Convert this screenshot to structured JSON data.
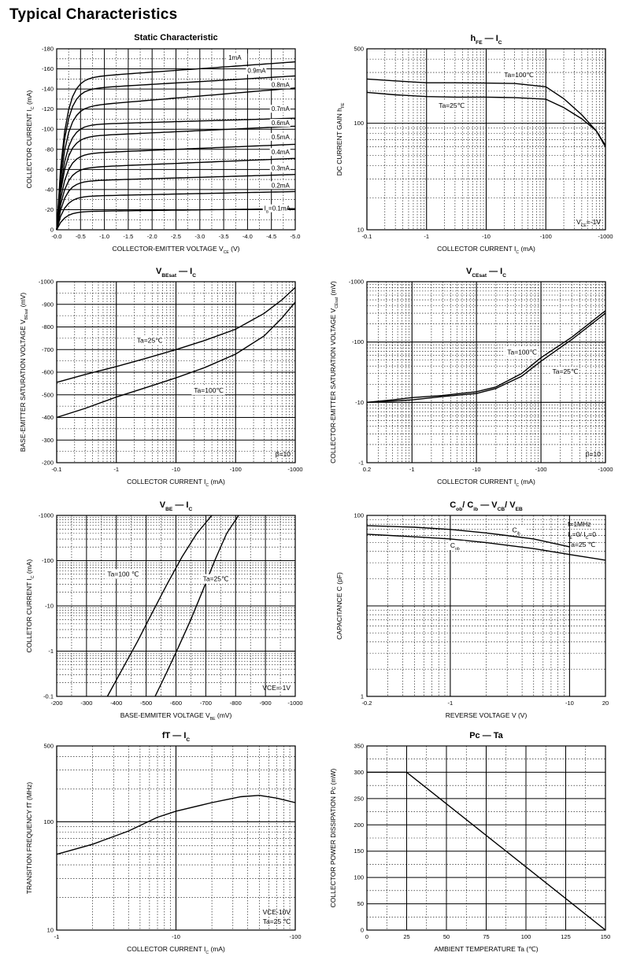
{
  "page_title": "Typical  Characteristics",
  "chart_data": [
    {
      "id": "static",
      "type": "line",
      "title": "Static Characteristic",
      "xlabel": "COLLECTOR-EMITTER VOLTAGE",
      "xlabel_sub": "V",
      "xlabel_sub_idx": "CE",
      "xlabel_unit": "(V)",
      "ylabel": "COLLECTOR CURRENT",
      "ylabel_sym": "I",
      "ylabel_idx": "C",
      "ylabel_unit": "(mA)",
      "xlim": [
        0,
        -5
      ],
      "ylim": [
        0,
        -180
      ],
      "xticks": [
        "-0.0",
        "-0.5",
        "-1.0",
        "-1.5",
        "-2.0",
        "-2.5",
        "-3.0",
        "-3.5",
        "-4.0",
        "-4.5",
        "-5.0"
      ],
      "yticks": [
        "0",
        "-20",
        "-40",
        "-60",
        "-80",
        "-100",
        "-120",
        "-140",
        "-160",
        "-180"
      ],
      "series": [
        {
          "name": "1mA",
          "sat": -150,
          "end": -167,
          "lx": -3.6,
          "ly": -169
        },
        {
          "name": "0.9mA",
          "sat": -139,
          "end": -153,
          "lx": -4.0,
          "ly": -156
        },
        {
          "name": "0.8mA",
          "sat": -121,
          "end": -141,
          "lx": -4.5,
          "ly": -142
        },
        {
          "name": "0.7mA",
          "sat": -104,
          "end": -111,
          "lx": -4.5,
          "ly": -118
        },
        {
          "name": "0.6mA",
          "sat": -92,
          "end": -103,
          "lx": -4.5,
          "ly": -104
        },
        {
          "name": "0.5mA",
          "sat": -75,
          "end": -85,
          "lx": -4.5,
          "ly": -90
        },
        {
          "name": "0.4mA",
          "sat": -61,
          "end": -71,
          "lx": -4.5,
          "ly": -75
        },
        {
          "name": "0.3mA",
          "sat": -48,
          "end": -55,
          "lx": -4.5,
          "ly": -59
        },
        {
          "name": "0.2mA",
          "sat": -33,
          "end": -38,
          "lx": -4.5,
          "ly": -42
        },
        {
          "name": "0.1mA",
          "sat": -18,
          "end": -21,
          "lx": -4.35,
          "ly": -19,
          "prefix": "I",
          "prefix_idx": "B"
        }
      ]
    },
    {
      "id": "hfe",
      "type": "line",
      "title": "h",
      "title_sub": "FE",
      "title_vs": "I",
      "title_vs_sub": "C",
      "xlabel": "COLLECTOR CURRENT",
      "xlabel_sub": "I",
      "xlabel_sub_idx": "C",
      "xlabel_unit": "(mA)",
      "ylabel": "DC CURRENT GAIN",
      "ylabel_sym": "h",
      "ylabel_idx": "FE",
      "x_scale": "log",
      "y_scale": "log",
      "xlim": [
        -0.1,
        -1000
      ],
      "ylim": [
        10,
        500
      ],
      "xticks": [
        "-0.1",
        "-1",
        "-10",
        "-100",
        "-1000"
      ],
      "yticks": [
        "10",
        "100",
        "500"
      ],
      "note": "V",
      "note_sub": "CE",
      "note_val": "=-1V",
      "series": [
        {
          "name": "Ta=100℃",
          "x": [
            -0.1,
            -0.3,
            -1,
            -3,
            -10,
            -30,
            -100,
            -200,
            -400,
            -700,
            -1000
          ],
          "y": [
            260,
            250,
            240,
            240,
            238,
            236,
            220,
            170,
            120,
            85,
            60
          ]
        },
        {
          "name": "Ta=25℃",
          "x": [
            -0.1,
            -0.3,
            -1,
            -3,
            -10,
            -30,
            -100,
            -200,
            -400,
            -700,
            -1000
          ],
          "y": [
            195,
            185,
            178,
            176,
            176,
            174,
            168,
            140,
            110,
            85,
            62
          ]
        }
      ]
    },
    {
      "id": "vbesat",
      "type": "line",
      "title": "V",
      "title_sub": "BEsat",
      "title_vs": "I",
      "title_vs_sub": "C",
      "xlabel": "COLLECTOR CURRENT",
      "xlabel_sub": "I",
      "xlabel_sub_idx": "C",
      "xlabel_unit": "(mA)",
      "ylabel": "BASE-EMITTER SATURATION",
      "ylabel2": "VOLTAGE",
      "ylabel_sym": "V",
      "ylabel_idx": "BEsat",
      "ylabel_unit": "(mV)",
      "x_scale": "log",
      "xlim": [
        -0.1,
        -1000
      ],
      "ylim": [
        -200,
        -1000
      ],
      "xticks": [
        "-0.1",
        "-1",
        "-10",
        "-100",
        "-1000"
      ],
      "yticks": [
        "-200",
        "-300",
        "-400",
        "-500",
        "-600",
        "-700",
        "-800",
        "-900",
        "-1000"
      ],
      "note": "β=10",
      "series": [
        {
          "name": "Ta=25℃",
          "x": [
            -0.1,
            -0.3,
            -1,
            -3,
            -10,
            -30,
            -100,
            -300,
            -600,
            -1000
          ],
          "y": [
            -555,
            -590,
            -625,
            -660,
            -700,
            -740,
            -790,
            -860,
            -920,
            -975
          ]
        },
        {
          "name": "Ta=100℃",
          "x": [
            -0.1,
            -0.3,
            -1,
            -3,
            -10,
            -30,
            -100,
            -300,
            -600,
            -1000
          ],
          "y": [
            -400,
            -440,
            -490,
            -530,
            -575,
            -620,
            -680,
            -760,
            -840,
            -910
          ]
        }
      ]
    },
    {
      "id": "vcesat",
      "type": "line",
      "title": "V",
      "title_sub": "CEsat",
      "title_vs": "I",
      "title_vs_sub": "C",
      "xlabel": "COLLECTOR CURRENT",
      "xlabel_sub": "I",
      "xlabel_sub_idx": "C",
      "xlabel_unit": "(mA)",
      "ylabel": "COLLECTOR-EMITTER SATURATION",
      "ylabel2": "VOLTAGE",
      "ylabel_sym": "V",
      "ylabel_idx": "CEsat",
      "ylabel_unit": "(mV)",
      "x_scale": "log",
      "y_scale": "log",
      "xlim": [
        -0.2,
        -1000
      ],
      "ylim": [
        -1,
        -1000
      ],
      "xticks": [
        "0.2",
        "-1",
        "-10",
        "-100",
        "-1000"
      ],
      "yticks": [
        "-1",
        "-10",
        "-100",
        "-1000"
      ],
      "note": "β=10",
      "series": [
        {
          "name": "Ta=100℃",
          "x": [
            -0.2,
            -0.5,
            -1,
            -3,
            -10,
            -20,
            -50,
            -100,
            -300,
            -1000
          ],
          "y": [
            -10,
            -11,
            -12,
            -13,
            -15,
            -18,
            -30,
            -55,
            -120,
            -330
          ]
        },
        {
          "name": "Ta=25℃",
          "x": [
            -0.2,
            -0.5,
            -1,
            -3,
            -10,
            -20,
            -50,
            -100,
            -300,
            -1000
          ],
          "y": [
            -10,
            -10.5,
            -11,
            -12.5,
            -14,
            -17,
            -27,
            -48,
            -110,
            -300
          ]
        }
      ]
    },
    {
      "id": "vbe",
      "type": "line",
      "title": "V",
      "title_sub": "BE",
      "title_vs": "I",
      "title_vs_sub": "C",
      "xlabel": "BASE-EMMITER VOLTAGE",
      "xlabel_sub": "V",
      "xlabel_sub_idx": "BE",
      "xlabel_unit": "(mV)",
      "ylabel": "COLLETOR CURRENT",
      "ylabel_sym": "I",
      "ylabel_idx": "C",
      "ylabel_unit": "(mA)",
      "y_scale": "log",
      "xlim": [
        -200,
        -1000
      ],
      "ylim": [
        -0.1,
        -1000
      ],
      "xticks": [
        "-200",
        "-300",
        "-400",
        "-500",
        "-600",
        "-700",
        "-800",
        "-900",
        "-1000"
      ],
      "yticks": [
        "-0.1",
        "-1",
        "-10",
        "-100",
        "-1000"
      ],
      "note": "VCE=-1V",
      "series": [
        {
          "name": "Ta=100 ℃",
          "x": [
            -370,
            -420,
            -470,
            -520,
            -570,
            -620,
            -670,
            -720
          ],
          "y": [
            -0.1,
            -0.4,
            -1.6,
            -7,
            -30,
            -120,
            -400,
            -1000
          ]
        },
        {
          "name": "Ta=25℃",
          "x": [
            -530,
            -570,
            -610,
            -650,
            -690,
            -730,
            -770,
            -810
          ],
          "y": [
            -0.1,
            -0.35,
            -1.3,
            -5,
            -22,
            -100,
            -400,
            -1000
          ]
        }
      ]
    },
    {
      "id": "cap",
      "type": "line",
      "title": "C",
      "title_sub": "ob",
      "title_mid": "/ C",
      "title_mid_sub": "ib",
      "title_vs": "V",
      "title_vs_sub": "CB",
      "title_vs2": "/ V",
      "title_vs2_sub": "EB",
      "xlabel": "REVERSE VOLTAGE",
      "xlabel_sub": "V",
      "xlabel_unit": "(V)",
      "ylabel": "CAPACITANCE",
      "ylabel_sym": "C",
      "ylabel_unit": "(pF)",
      "x_scale": "log",
      "y_scale": "log",
      "xlim": [
        -0.2,
        -20
      ],
      "ylim": [
        1,
        100
      ],
      "xticks": [
        "-0.2",
        "-1",
        "-10",
        "20"
      ],
      "yticks": [
        "1",
        "100"
      ],
      "notes": [
        "f=1MHz",
        "I",
        "Ta=25 ℃"
      ],
      "note2_full": "I_E=0/ I_C=0",
      "series": [
        {
          "name": "C",
          "name_sub": "ib",
          "x": [
            -0.2,
            -0.5,
            -1,
            -2,
            -5,
            -10
          ],
          "y": [
            77,
            74,
            70,
            64,
            55,
            45
          ]
        },
        {
          "name": "C",
          "name_sub": "ob",
          "x": [
            -0.2,
            -0.5,
            -1,
            -2,
            -5,
            -10,
            -20
          ],
          "y": [
            62,
            58,
            55,
            50,
            43,
            37,
            32
          ]
        }
      ]
    },
    {
      "id": "ft",
      "type": "line",
      "title": "fT",
      "title_vs": "I",
      "title_vs_sub": "C",
      "xlabel": "COLLECTOR CURRENT",
      "xlabel_sub": "I",
      "xlabel_sub_idx": "C",
      "xlabel_unit": "(mA)",
      "ylabel": "TRANSITION FREQUENCY",
      "ylabel_sym": "fT",
      "ylabel_unit": "(MHz)",
      "x_scale": "log",
      "y_scale": "log",
      "xlim": [
        -1,
        -100
      ],
      "ylim": [
        10,
        500
      ],
      "xticks": [
        "-1",
        "-10",
        "-100"
      ],
      "yticks": [
        "10",
        "100",
        "500"
      ],
      "notes": [
        "VCE-10V",
        "Ta=25 ℃"
      ],
      "series": [
        {
          "name": "fT",
          "x": [
            -1,
            -2,
            -4,
            -7,
            -10,
            -20,
            -35,
            -50,
            -70,
            -100
          ],
          "y": [
            50,
            62,
            82,
            110,
            125,
            150,
            170,
            175,
            165,
            150
          ]
        }
      ]
    },
    {
      "id": "pc",
      "type": "line",
      "title": "Pc",
      "title_vs": "Ta",
      "xlabel": "AMBIENT TEMPERATURE",
      "xlabel_sub": "Ta",
      "xlabel_unit": "(℃)",
      "ylabel": "COLLECTOR POWER DISSIPATION",
      "ylabel2": "Pc",
      "ylabel_unit": "(mW)",
      "xlim": [
        0,
        150
      ],
      "ylim": [
        0,
        350
      ],
      "xticks": [
        "0",
        "25",
        "50",
        "75",
        "100",
        "125",
        "150"
      ],
      "yticks": [
        "0",
        "50",
        "100",
        "150",
        "200",
        "250",
        "300",
        "350"
      ],
      "series": [
        {
          "name": "Pc",
          "x": [
            0,
            25,
            150
          ],
          "y": [
            300,
            300,
            0
          ]
        }
      ]
    }
  ]
}
